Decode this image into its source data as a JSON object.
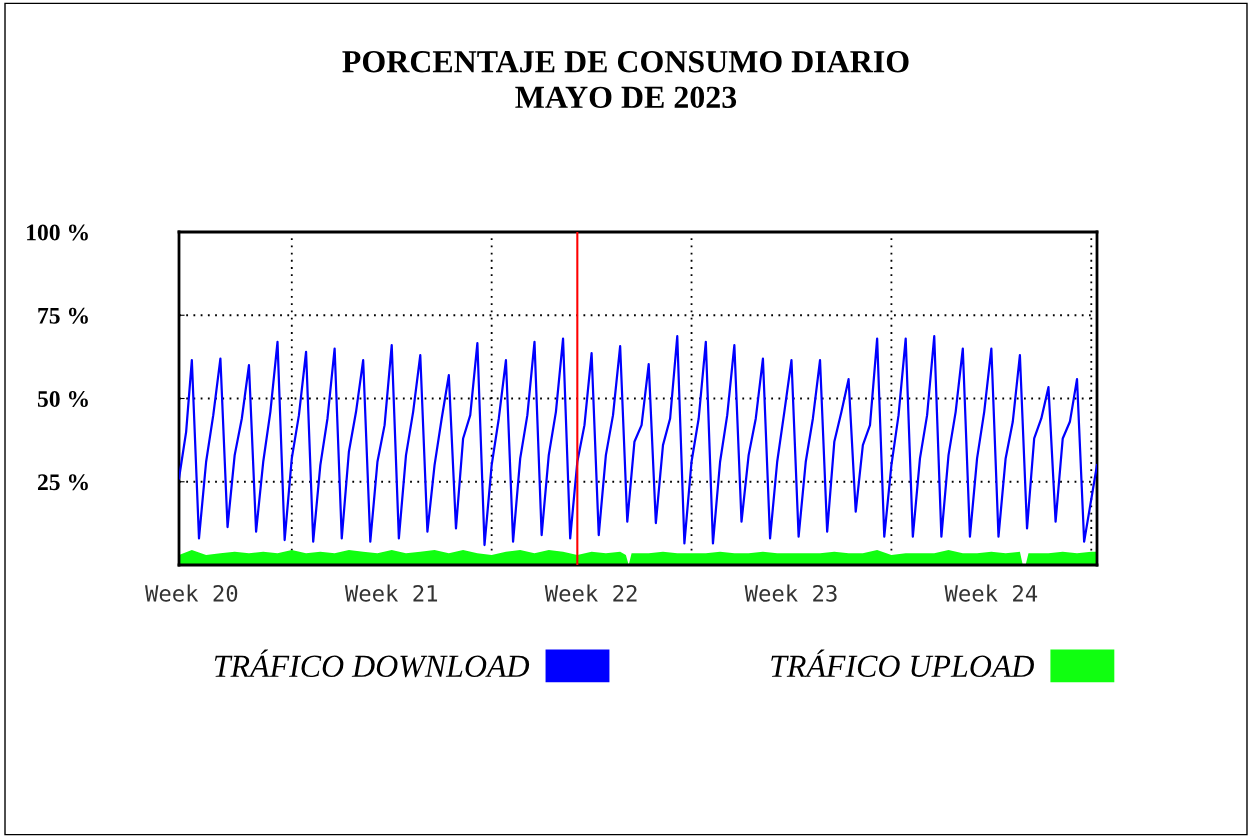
{
  "chart_data": {
    "type": "line",
    "title": "PORCENTAJE DE CONSUMO DIARIO\nMAYO DE 2023",
    "xlim": [
      "2023-05-18T01:12",
      "2023-06-19T04:48"
    ],
    "ylim": [
      0,
      100
    ],
    "xticks": [
      {
        "value": "2023-05-18T12:00",
        "label": "Week 20"
      },
      {
        "value": "2023-05-22",
        "label": null
      },
      {
        "value": "2023-05-25T12:00",
        "label": "Week 21"
      },
      {
        "value": "2023-05-29",
        "label": null
      },
      {
        "value": "2023-06-01T12:00",
        "label": "Week 22"
      },
      {
        "value": "2023-06-05",
        "label": null
      },
      {
        "value": "2023-06-08T12:00",
        "label": "Week 23"
      },
      {
        "value": "2023-06-12",
        "label": null
      },
      {
        "value": "2023-06-15T12:00",
        "label": "Week 24"
      },
      {
        "value": "2023-06-19",
        "label": null
      }
    ],
    "yticks": [
      {
        "value": 25,
        "label": "25 %"
      },
      {
        "value": 50,
        "label": "50 %"
      },
      {
        "value": 75,
        "label": "75 %"
      },
      {
        "value": 100,
        "label": "100 %"
      }
    ],
    "grid": true,
    "legend": "bottom",
    "line_style": "solid",
    "ref_lines": [
      {
        "axis": "x",
        "value": "2023-06-01",
        "label": null,
        "color": "#ff0000"
      }
    ],
    "series": [
      {
        "name": "TRÁFICO DOWNLOAD",
        "color": "#0000ff",
        "x": [
          "2023-05-18T01:12",
          "2023-05-18T07:12",
          "2023-05-18T12:00",
          "2023-05-18T18:00",
          "2023-05-19T00:00",
          "2023-05-19T06:00",
          "2023-05-19T12:00",
          "2023-05-19T18:00",
          "2023-05-20T00:00",
          "2023-05-20T06:00",
          "2023-05-20T12:00",
          "2023-05-20T18:00",
          "2023-05-21T00:00",
          "2023-05-21T06:00",
          "2023-05-21T12:00",
          "2023-05-21T18:00",
          "2023-05-22T00:00",
          "2023-05-22T06:00",
          "2023-05-22T12:00",
          "2023-05-22T18:00",
          "2023-05-23T00:00",
          "2023-05-23T06:00",
          "2023-05-23T12:00",
          "2023-05-23T18:00",
          "2023-05-24T00:00",
          "2023-05-24T06:00",
          "2023-05-24T12:00",
          "2023-05-24T18:00",
          "2023-05-25T00:00",
          "2023-05-25T06:00",
          "2023-05-25T12:00",
          "2023-05-25T18:00",
          "2023-05-26T00:00",
          "2023-05-26T06:00",
          "2023-05-26T12:00",
          "2023-05-26T18:00",
          "2023-05-27T00:00",
          "2023-05-27T06:00",
          "2023-05-27T12:00",
          "2023-05-27T18:00",
          "2023-05-28T00:00",
          "2023-05-28T06:00",
          "2023-05-28T12:00",
          "2023-05-28T18:00",
          "2023-05-29T00:00",
          "2023-05-29T06:00",
          "2023-05-29T12:00",
          "2023-05-29T18:00",
          "2023-05-30T00:00",
          "2023-05-30T06:00",
          "2023-05-30T12:00",
          "2023-05-30T18:00",
          "2023-05-31T00:00",
          "2023-05-31T06:00",
          "2023-05-31T12:00",
          "2023-05-31T18:00",
          "2023-06-01T00:00",
          "2023-06-01T06:00",
          "2023-06-01T12:00",
          "2023-06-01T18:00",
          "2023-06-02T00:00",
          "2023-06-02T06:00",
          "2023-06-02T12:00",
          "2023-06-02T18:00",
          "2023-06-03T00:00",
          "2023-06-03T06:00",
          "2023-06-03T12:00",
          "2023-06-03T18:00",
          "2023-06-04T00:00",
          "2023-06-04T06:00",
          "2023-06-04T12:00",
          "2023-06-04T18:00",
          "2023-06-05T00:00",
          "2023-06-05T06:00",
          "2023-06-05T12:00",
          "2023-06-05T18:00",
          "2023-06-06T00:00",
          "2023-06-06T06:00",
          "2023-06-06T12:00",
          "2023-06-06T18:00",
          "2023-06-07T00:00",
          "2023-06-07T06:00",
          "2023-06-07T12:00",
          "2023-06-07T18:00",
          "2023-06-08T00:00",
          "2023-06-08T06:00",
          "2023-06-08T12:00",
          "2023-06-08T18:00",
          "2023-06-09T00:00",
          "2023-06-09T06:00",
          "2023-06-09T12:00",
          "2023-06-09T18:00",
          "2023-06-10T00:00",
          "2023-06-10T06:00",
          "2023-06-10T12:00",
          "2023-06-10T18:00",
          "2023-06-11T00:00",
          "2023-06-11T06:00",
          "2023-06-11T12:00",
          "2023-06-11T18:00",
          "2023-06-12T00:00",
          "2023-06-12T06:00",
          "2023-06-12T12:00",
          "2023-06-12T18:00",
          "2023-06-13T00:00",
          "2023-06-13T06:00",
          "2023-06-13T12:00",
          "2023-06-13T18:00",
          "2023-06-14T00:00",
          "2023-06-14T06:00",
          "2023-06-14T12:00",
          "2023-06-14T18:00",
          "2023-06-15T00:00",
          "2023-06-15T06:00",
          "2023-06-15T12:00",
          "2023-06-15T18:00",
          "2023-06-16T00:00",
          "2023-06-16T06:00",
          "2023-06-16T12:00",
          "2023-06-16T18:00",
          "2023-06-17T00:00",
          "2023-06-17T06:00",
          "2023-06-17T12:00",
          "2023-06-17T18:00",
          "2023-06-18T00:00",
          "2023-06-18T06:00",
          "2023-06-18T12:00",
          "2023-06-18T18:00",
          "2023-06-19T04:48"
        ],
        "values": [
          26,
          40,
          61.5,
          8,
          31,
          45,
          62,
          11.4,
          33,
          44,
          60,
          10,
          31,
          46,
          67,
          7.5,
          32,
          45,
          64,
          7,
          30,
          44,
          65,
          8,
          34,
          46,
          61.5,
          7,
          31,
          42,
          66,
          8,
          33,
          46,
          63,
          10,
          30,
          44,
          57,
          11,
          38,
          45,
          66.6,
          6,
          30,
          44,
          61.5,
          7,
          32,
          45,
          67,
          9,
          33,
          46,
          68,
          8,
          31,
          42,
          63.6,
          9,
          33,
          45,
          65.7,
          13,
          37,
          42,
          60.3,
          12.6,
          36,
          44,
          68.7,
          6.5,
          31,
          44,
          67,
          6.5,
          31,
          45,
          66,
          13,
          33,
          44,
          62,
          8,
          31,
          46,
          61.5,
          8.5,
          31,
          44,
          61.5,
          10,
          37,
          46,
          55.8,
          16,
          36,
          42,
          68,
          8.5,
          30,
          45,
          68,
          8.5,
          32,
          45,
          68.7,
          8.5,
          33,
          46,
          65,
          8.5,
          32,
          46,
          65,
          8.5,
          32,
          43,
          63,
          11,
          38,
          44,
          53.4,
          13,
          38,
          43,
          55.8,
          7,
          30
        ]
      },
      {
        "name": "TRÁFICO UPLOAD",
        "type": "area",
        "color": "#10ff10",
        "x": [
          "2023-05-18T01:12",
          "2023-05-18T12:00",
          "2023-05-19T00:00",
          "2023-05-19T12:00",
          "2023-05-20T00:00",
          "2023-05-20T12:00",
          "2023-05-21T00:00",
          "2023-05-21T12:00",
          "2023-05-22T00:00",
          "2023-05-22T12:00",
          "2023-05-23T00:00",
          "2023-05-23T12:00",
          "2023-05-24T00:00",
          "2023-05-24T12:00",
          "2023-05-25T00:00",
          "2023-05-25T12:00",
          "2023-05-26T00:00",
          "2023-05-26T12:00",
          "2023-05-27T00:00",
          "2023-05-27T12:00",
          "2023-05-28T00:00",
          "2023-05-28T12:00",
          "2023-05-29T00:00",
          "2023-05-29T12:00",
          "2023-05-30T00:00",
          "2023-05-30T12:00",
          "2023-05-31T00:00",
          "2023-05-31T12:00",
          "2023-06-01T00:00",
          "2023-06-01T12:00",
          "2023-06-02T00:00",
          "2023-06-02T12:00",
          "2023-06-02T16:48",
          "2023-06-02T19:12",
          "2023-06-02T21:36",
          "2023-06-03T12:00",
          "2023-06-04T00:00",
          "2023-06-04T12:00",
          "2023-06-05T00:00",
          "2023-06-05T12:00",
          "2023-06-06T00:00",
          "2023-06-06T12:00",
          "2023-06-07T00:00",
          "2023-06-07T12:00",
          "2023-06-08T00:00",
          "2023-06-08T12:00",
          "2023-06-09T00:00",
          "2023-06-09T12:00",
          "2023-06-10T00:00",
          "2023-06-10T12:00",
          "2023-06-11T00:00",
          "2023-06-11T12:00",
          "2023-06-12T00:00",
          "2023-06-12T12:00",
          "2023-06-13T00:00",
          "2023-06-13T12:00",
          "2023-06-14T00:00",
          "2023-06-14T12:00",
          "2023-06-15T00:00",
          "2023-06-15T12:00",
          "2023-06-16T00:00",
          "2023-06-16T12:00",
          "2023-06-16T14:24",
          "2023-06-16T16:48",
          "2023-06-16T19:12",
          "2023-06-17T12:00",
          "2023-06-18T00:00",
          "2023-06-18T12:00",
          "2023-06-19T00:00",
          "2023-06-19T04:48"
        ],
        "values": [
          3,
          4.5,
          3,
          3.5,
          4,
          3.5,
          4,
          3.5,
          4.5,
          3.5,
          4,
          3.5,
          4.5,
          4,
          3.5,
          4.5,
          3.5,
          4,
          4.5,
          3.5,
          4.5,
          3.5,
          3,
          4,
          4.5,
          3.5,
          4.5,
          4,
          3,
          4,
          3.5,
          4,
          3,
          0,
          3.5,
          3.5,
          4,
          3.5,
          3.5,
          3.5,
          4,
          3.5,
          3.5,
          4,
          3.5,
          3.5,
          3.5,
          3.5,
          4,
          3.5,
          3.5,
          4.5,
          3,
          3.5,
          3.5,
          3.5,
          4.5,
          3.5,
          3.5,
          4,
          3.5,
          4,
          0,
          0,
          3.5,
          3.5,
          4,
          3.5,
          4,
          4
        ]
      }
    ]
  }
}
